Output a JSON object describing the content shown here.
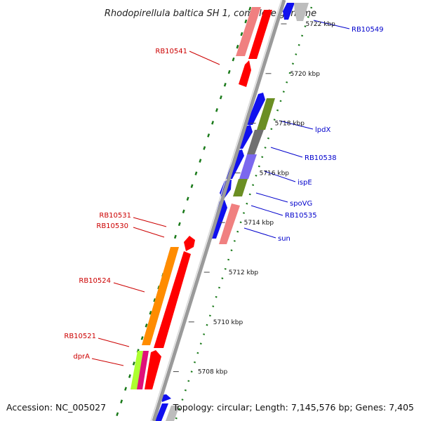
{
  "title": "Rhodopirellula baltica SH 1, complete genome",
  "footer": {
    "accession": "Accession: NC_005027",
    "summary": "Topology: circular; Length: 7,145,576 bp; Genes: 7,405"
  },
  "colors": {
    "backbone": "#9a9a9a",
    "dots": "#1a7a1a",
    "forward_label": "#cc0000",
    "reverse_label": "#0000cc"
  },
  "scale": {
    "unit": "kbp",
    "ticks": [
      {
        "kbp": 5722,
        "label": "5722 kbp"
      },
      {
        "kbp": 5720,
        "label": "5720 kbp"
      },
      {
        "kbp": 5718,
        "label": "5718 kbp"
      },
      {
        "kbp": 5716,
        "label": "5716 kbp"
      },
      {
        "kbp": 5714,
        "label": "5714 kbp"
      },
      {
        "kbp": 5712,
        "label": "5712 kbp"
      },
      {
        "kbp": 5710,
        "label": "5710 kbp"
      },
      {
        "kbp": 5708,
        "label": "5708 kbp"
      }
    ]
  },
  "labels": {
    "forward": [
      "RB10541",
      "RB10531",
      "RB10530",
      "RB10524",
      "RB10521",
      "dprA"
    ],
    "reverse": [
      "RB10549",
      "lpdX",
      "RB10538",
      "ispE",
      "spoVG",
      "RB10535",
      "sun"
    ]
  }
}
